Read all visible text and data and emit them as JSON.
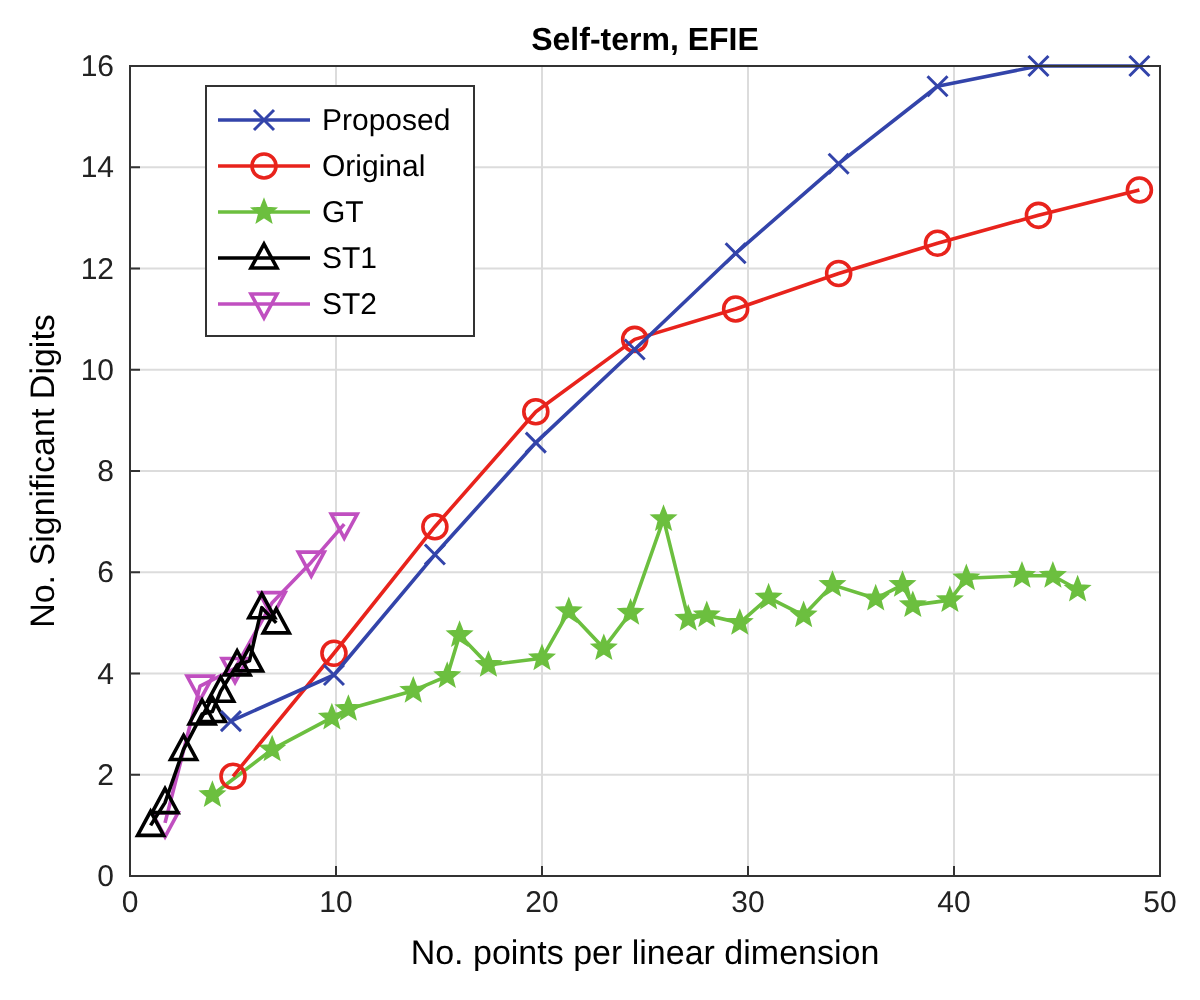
{
  "chart_data": {
    "type": "line",
    "title": "Self-term, EFIE",
    "xlabel": "No. points per linear dimension",
    "ylabel": "No. Significant Digits",
    "xlim": [
      0,
      50
    ],
    "ylim": [
      0,
      16
    ],
    "xticks": [
      0,
      10,
      20,
      30,
      40,
      50
    ],
    "yticks": [
      0,
      2,
      4,
      6,
      8,
      10,
      12,
      14,
      16
    ],
    "grid": true,
    "legend": "top left",
    "series": [
      {
        "name": "Proposed",
        "color": "#3344aa",
        "marker": "cross",
        "x": [
          4.9,
          9.9,
          14.8,
          19.7,
          24.5,
          29.4,
          34.4,
          39.2,
          44.1,
          49
        ],
        "values": [
          3.06,
          3.97,
          6.35,
          8.56,
          10.4,
          12.3,
          14.07,
          15.6,
          16,
          16
        ]
      },
      {
        "name": "Original",
        "color": "#e8231c",
        "marker": "circle",
        "x": [
          5.0,
          9.9,
          14.8,
          19.7,
          24.5,
          29.4,
          34.4,
          39.2,
          44.1,
          49
        ],
        "values": [
          1.97,
          4.4,
          6.9,
          9.17,
          10.6,
          11.2,
          11.9,
          12.5,
          13.05,
          13.55
        ]
      },
      {
        "name": "GT",
        "color": "#6cbf3f",
        "marker": "star",
        "x": [
          4.0,
          6.9,
          9.8,
          10.6,
          13.75,
          15.4,
          16.0,
          17.4,
          20.0,
          21.3,
          23.0,
          24.3,
          25.9,
          27.1,
          28.0,
          29.6,
          31.0,
          32.7,
          34.1,
          36.2,
          37.5,
          38.0,
          39.8,
          40.6,
          43.3,
          44.8,
          46.0
        ],
        "values": [
          1.6,
          2.5,
          3.13,
          3.3,
          3.66,
          3.95,
          4.76,
          4.17,
          4.3,
          5.23,
          4.5,
          5.2,
          7.05,
          5.08,
          5.15,
          5.0,
          5.5,
          5.15,
          5.75,
          5.48,
          5.75,
          5.35,
          5.45,
          5.88,
          5.93,
          5.93,
          5.66
        ]
      },
      {
        "name": "ST1",
        "color": "#000000",
        "marker": "triangle",
        "x": [
          1.0,
          1.7,
          2.6,
          3.5,
          4.0,
          4.4,
          5.2,
          5.8,
          6.4,
          7.1
        ],
        "values": [
          1.0,
          1.45,
          2.5,
          3.2,
          3.25,
          3.65,
          4.17,
          4.25,
          5.3,
          5.0
        ]
      },
      {
        "name": "ST2",
        "color": "#c04fc0",
        "marker": "triangle-down",
        "x": [
          1.7,
          3.4,
          5.1,
          6.9,
          8.8,
          10.4
        ],
        "values": [
          1.05,
          3.75,
          4.1,
          5.4,
          6.2,
          6.95
        ]
      }
    ]
  }
}
